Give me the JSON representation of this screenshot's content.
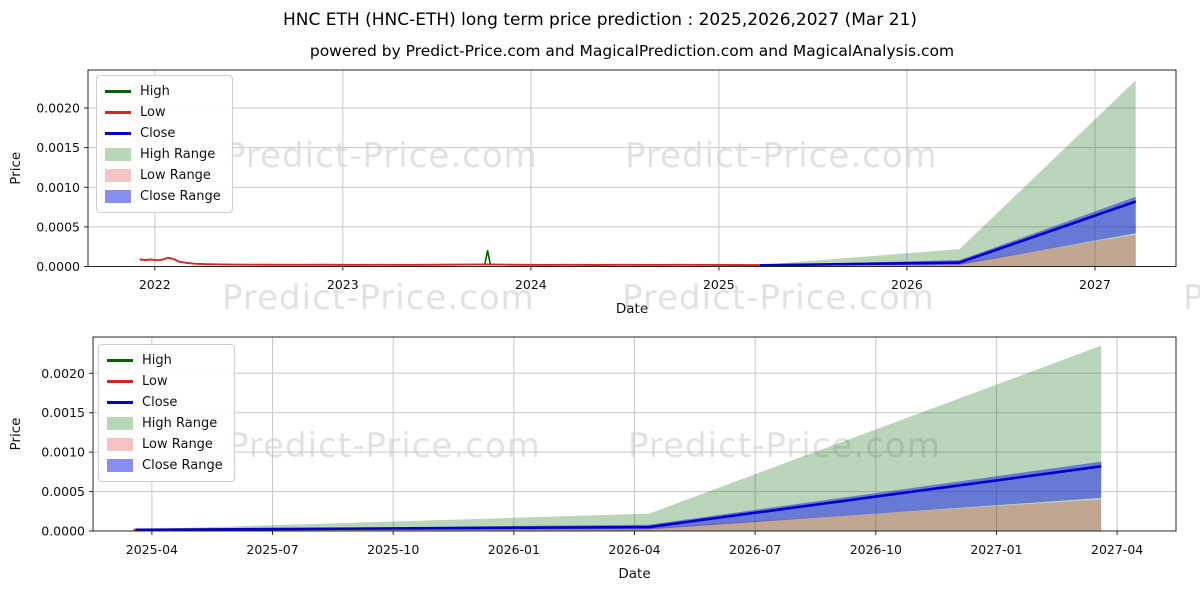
{
  "header": {
    "title": "HNC ETH (HNC-ETH) long term price prediction : 2025,2026,2027 (Mar 21)",
    "subtitle": "powered by Predict-Price.com and MagicalPrediction.com and MagicalAnalysis.com"
  },
  "watermark": {
    "text": "Predict-Price.com",
    "color": "#e2e2e2"
  },
  "colors": {
    "high_line": "#006400",
    "low_line": "#d62728",
    "close_line": "#0000cd",
    "high_range_fill": "#b7d7b7",
    "low_range_fill": "#f6c3c3",
    "close_range_fill": "#898ef0",
    "grid": "#c9c9c9",
    "spine": "#262626"
  },
  "legend": {
    "entries": [
      {
        "label": "High",
        "swatch": "line",
        "color": "#006400"
      },
      {
        "label": "Low",
        "swatch": "line",
        "color": "#d62728"
      },
      {
        "label": "Close",
        "swatch": "line",
        "color": "#0000cd"
      },
      {
        "label": "High Range",
        "swatch": "patch",
        "color": "#b7d7b7"
      },
      {
        "label": "Low Range",
        "swatch": "patch",
        "color": "#f6c3c3"
      },
      {
        "label": "Close Range",
        "swatch": "patch",
        "color": "#898ef0"
      }
    ]
  },
  "chart_data": [
    {
      "type": "line",
      "title": "",
      "xlabel": "Date",
      "ylabel": "Price",
      "xlim": [
        2021.645,
        2027.431
      ],
      "ylim": [
        0,
        0.00248
      ],
      "grid": true,
      "legend_position": "upper left",
      "xticks": [
        {
          "v": 2022,
          "label": "2022"
        },
        {
          "v": 2023,
          "label": "2023"
        },
        {
          "v": 2024,
          "label": "2024"
        },
        {
          "v": 2025,
          "label": "2025"
        },
        {
          "v": 2026,
          "label": "2026"
        },
        {
          "v": 2027,
          "label": "2027"
        }
      ],
      "yticks": [
        {
          "v": 0.0,
          "label": "0.0000"
        },
        {
          "v": 0.0005,
          "label": "0.0005"
        },
        {
          "v": 0.001,
          "label": "0.0010"
        },
        {
          "v": 0.0015,
          "label": "0.0015"
        },
        {
          "v": 0.002,
          "label": "0.0020"
        }
      ],
      "series": [
        {
          "name": "High Range",
          "kind": "band",
          "fill": "rgba(0,100,0,0.27)",
          "x": [
            2025.217,
            2026.28,
            2027.217
          ],
          "y_top": [
            2e-05,
            0.00022,
            0.00235
          ],
          "y_bottom": [
            0,
            0,
            0
          ]
        },
        {
          "name": "Low Range",
          "kind": "band",
          "fill": "rgba(214,39,40,0.27)",
          "x": [
            2025.217,
            2026.28,
            2027.217
          ],
          "y_top": [
            1.2e-05,
            4e-05,
            0.0004
          ],
          "y_bottom": [
            0,
            0,
            0
          ]
        },
        {
          "name": "Close Range",
          "kind": "band",
          "fill": "rgba(20,30,235,0.5)",
          "x": [
            2025.217,
            2026.28,
            2027.217
          ],
          "y_top": [
            1.8e-05,
            8e-05,
            0.00088
          ],
          "y_bottom": [
            1e-05,
            2e-05,
            0.00042
          ]
        },
        {
          "name": "High",
          "kind": "line",
          "color": "#006400",
          "width": 1.6,
          "x": [
            2023.755,
            2023.77,
            2023.785
          ],
          "y": [
            2.2e-05,
            0.0002,
            2.2e-05
          ]
        },
        {
          "name": "Low",
          "kind": "line",
          "color": "#d62728",
          "width": 1.9,
          "x": [
            2021.92,
            2021.95,
            2021.98,
            2022.01,
            2022.04,
            2022.07,
            2022.1,
            2022.13,
            2022.17,
            2022.21,
            2022.26,
            2022.32,
            2022.4,
            2022.5,
            2022.62,
            2022.75,
            2022.9,
            2023.05,
            2023.2,
            2023.35,
            2023.5,
            2023.65,
            2023.78,
            2023.9,
            2024.05,
            2024.2,
            2024.35,
            2024.5,
            2024.65,
            2024.8,
            2024.95,
            2025.1,
            2025.217
          ],
          "y": [
            9e-05,
            8.2e-05,
            8.8e-05,
            8e-05,
            8.5e-05,
            0.00011,
            9.5e-05,
            6e-05,
            4.5e-05,
            3.5e-05,
            3e-05,
            2.8e-05,
            2.5e-05,
            2.3e-05,
            2.2e-05,
            2.1e-05,
            2.2e-05,
            2e-05,
            2.1e-05,
            2e-05,
            2.2e-05,
            2.4e-05,
            2.6e-05,
            2.2e-05,
            2e-05,
            2.1e-05,
            1.9e-05,
            2.1e-05,
            2e-05,
            2.1e-05,
            2e-05,
            1.9e-05,
            1.8e-05
          ]
        },
        {
          "name": "Close",
          "kind": "line",
          "color": "#0000cd",
          "width": 2.6,
          "x": [
            2025.217,
            2026.28,
            2027.217
          ],
          "y": [
            1.5e-05,
            5e-05,
            0.00082
          ]
        }
      ]
    },
    {
      "type": "line",
      "title": "",
      "xlabel": "Date",
      "ylabel": "Price",
      "xlim": [
        2025.128,
        2027.372
      ],
      "ylim": [
        0,
        0.00246
      ],
      "grid": true,
      "legend_position": "upper left",
      "xticks": [
        {
          "v": 2025.25,
          "label": "2025-04"
        },
        {
          "v": 2025.5,
          "label": "2025-07"
        },
        {
          "v": 2025.75,
          "label": "2025-10"
        },
        {
          "v": 2026.0,
          "label": "2026-01"
        },
        {
          "v": 2026.25,
          "label": "2026-04"
        },
        {
          "v": 2026.5,
          "label": "2026-07"
        },
        {
          "v": 2026.75,
          "label": "2026-10"
        },
        {
          "v": 2027.0,
          "label": "2027-01"
        },
        {
          "v": 2027.25,
          "label": "2027-04"
        }
      ],
      "yticks": [
        {
          "v": 0.0,
          "label": "0.0000"
        },
        {
          "v": 0.0005,
          "label": "0.0005"
        },
        {
          "v": 0.001,
          "label": "0.0010"
        },
        {
          "v": 0.0015,
          "label": "0.0015"
        },
        {
          "v": 0.002,
          "label": "0.0020"
        }
      ],
      "series": [
        {
          "name": "High Range",
          "kind": "band",
          "fill": "rgba(0,100,0,0.27)",
          "x": [
            2025.217,
            2026.28,
            2027.217
          ],
          "y_top": [
            2e-05,
            0.00022,
            0.00235
          ],
          "y_bottom": [
            0,
            0,
            0
          ]
        },
        {
          "name": "Low Range",
          "kind": "band",
          "fill": "rgba(214,39,40,0.27)",
          "x": [
            2025.217,
            2026.28,
            2027.217
          ],
          "y_top": [
            1.2e-05,
            4e-05,
            0.0004
          ],
          "y_bottom": [
            0,
            0,
            0
          ]
        },
        {
          "name": "Close Range",
          "kind": "band",
          "fill": "rgba(20,30,235,0.5)",
          "x": [
            2025.217,
            2026.28,
            2027.217
          ],
          "y_top": [
            1.8e-05,
            8e-05,
            0.00088
          ],
          "y_bottom": [
            1e-05,
            2e-05,
            0.00042
          ]
        },
        {
          "name": "Low",
          "kind": "line",
          "color": "#d62728",
          "width": 1.9,
          "x": [
            2025.212,
            2025.22
          ],
          "y": [
            1.8e-05,
            1.8e-05
          ]
        },
        {
          "name": "Close",
          "kind": "line",
          "color": "#0000cd",
          "width": 2.6,
          "x": [
            2025.217,
            2026.28,
            2027.217
          ],
          "y": [
            1.5e-05,
            5e-05,
            0.00082
          ]
        }
      ]
    }
  ]
}
